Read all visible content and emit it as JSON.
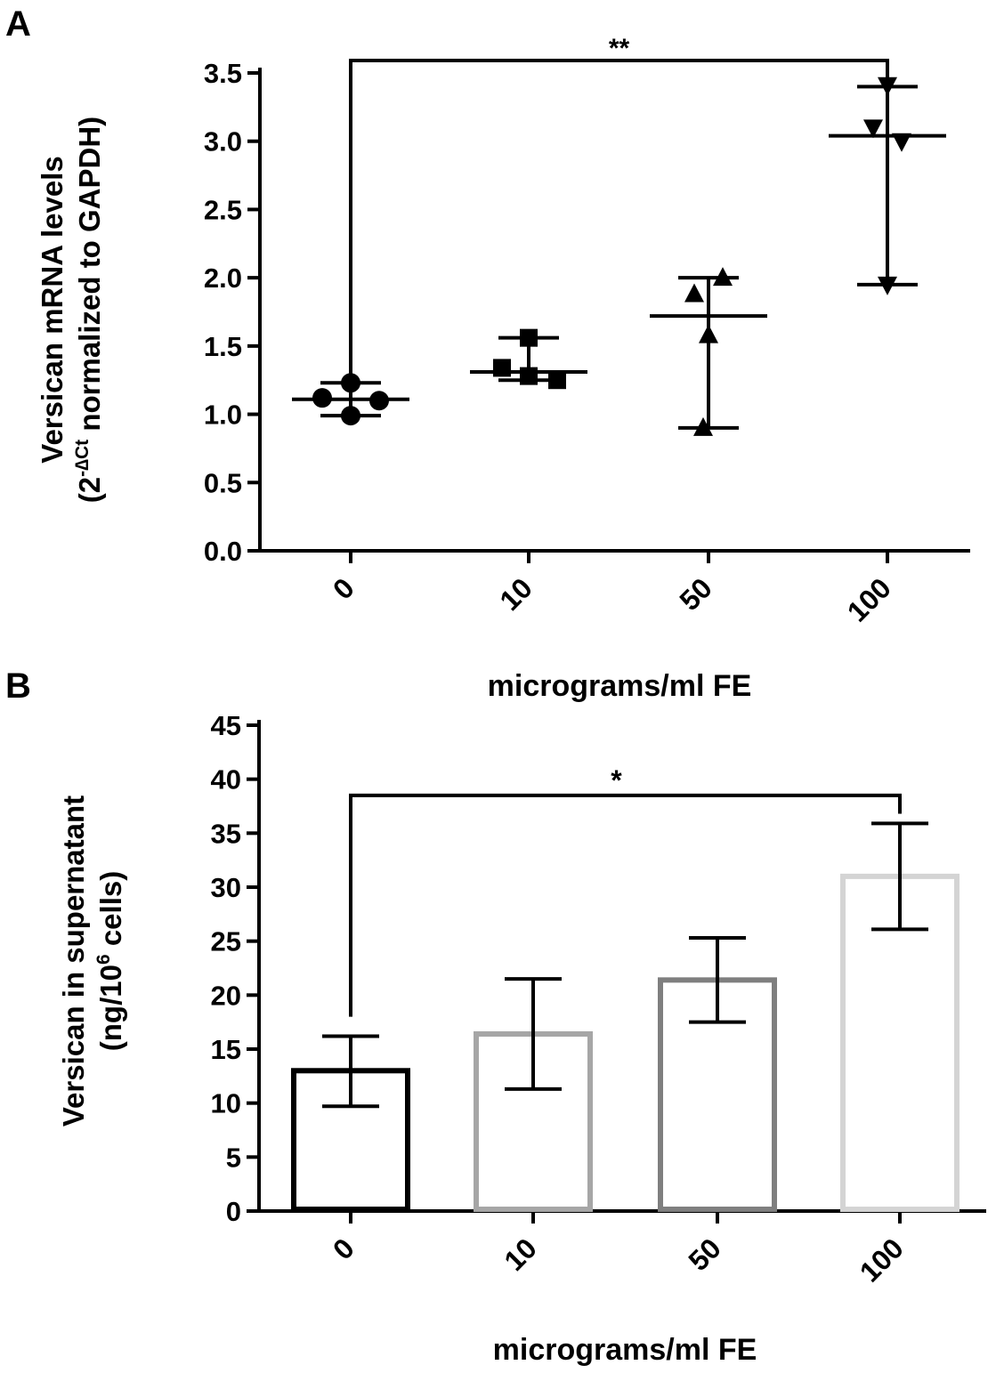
{
  "chart_data": [
    {
      "type": "scatter",
      "panel_label": "A",
      "title": "",
      "xlabel": "micrograms/ml FE",
      "ylabel_line1": "Versican mRNA  levels",
      "ylabel_line2_prefix": "(2",
      "ylabel_line2_sup": "-∆Ct",
      "ylabel_line2_suffix": " normalized to GAPDH)",
      "ylim": [
        0,
        3.5
      ],
      "yticks": [
        0.0,
        0.5,
        1.0,
        1.5,
        2.0,
        2.5,
        3.0,
        3.5
      ],
      "ytick_labels": [
        "0.0",
        "0.5",
        "1.0",
        "1.5",
        "2.0",
        "2.5",
        "3.0",
        "3.5"
      ],
      "categories": [
        "0",
        "10",
        "50",
        "100"
      ],
      "series": [
        {
          "category": "0",
          "marker": "circle",
          "points": [
            1.23,
            1.12,
            1.1,
            0.99
          ],
          "center": 1.11,
          "lower": 0.99,
          "upper": 1.23
        },
        {
          "category": "10",
          "marker": "square",
          "points": [
            1.56,
            1.34,
            1.28,
            1.25
          ],
          "center": 1.31,
          "lower": 1.25,
          "upper": 1.56
        },
        {
          "category": "50",
          "marker": "triangle-up",
          "points": [
            2.0,
            1.88,
            1.58,
            0.9
          ],
          "center": 1.72,
          "lower": 0.9,
          "upper": 2.0
        },
        {
          "category": "100",
          "marker": "triangle-down",
          "points": [
            3.41,
            3.1,
            3.0,
            1.95
          ],
          "center": 3.04,
          "lower": 1.95,
          "upper": 3.4
        }
      ],
      "significance": {
        "from": "0",
        "to": "100",
        "label": "**",
        "y": 3.5
      }
    },
    {
      "type": "bar",
      "panel_label": "B",
      "title": "",
      "xlabel": "micrograms/ml FE",
      "ylabel_line1": "Versican in supernatant",
      "ylabel_line2_prefix": "(ng/10",
      "ylabel_line2_sup": "6",
      "ylabel_line2_suffix": " cells)",
      "ylim": [
        0,
        45
      ],
      "yticks": [
        0,
        5,
        10,
        15,
        20,
        25,
        30,
        35,
        40,
        45
      ],
      "ytick_labels": [
        "0",
        "5",
        "10",
        "15",
        "20",
        "25",
        "30",
        "35",
        "40",
        "45"
      ],
      "categories": [
        "0",
        "10",
        "50",
        "100"
      ],
      "values": [
        13.0,
        16.4,
        21.4,
        31.0
      ],
      "error_lower": [
        9.7,
        11.3,
        17.5,
        26.1
      ],
      "error_upper": [
        16.2,
        21.5,
        25.3,
        35.9
      ],
      "bar_colors": [
        "#000000",
        "#a6a6a6",
        "#7f7f7f",
        "#d4d4d4"
      ],
      "significance": {
        "from": "0",
        "to": "100",
        "label": "*",
        "y": 38.5
      }
    }
  ]
}
